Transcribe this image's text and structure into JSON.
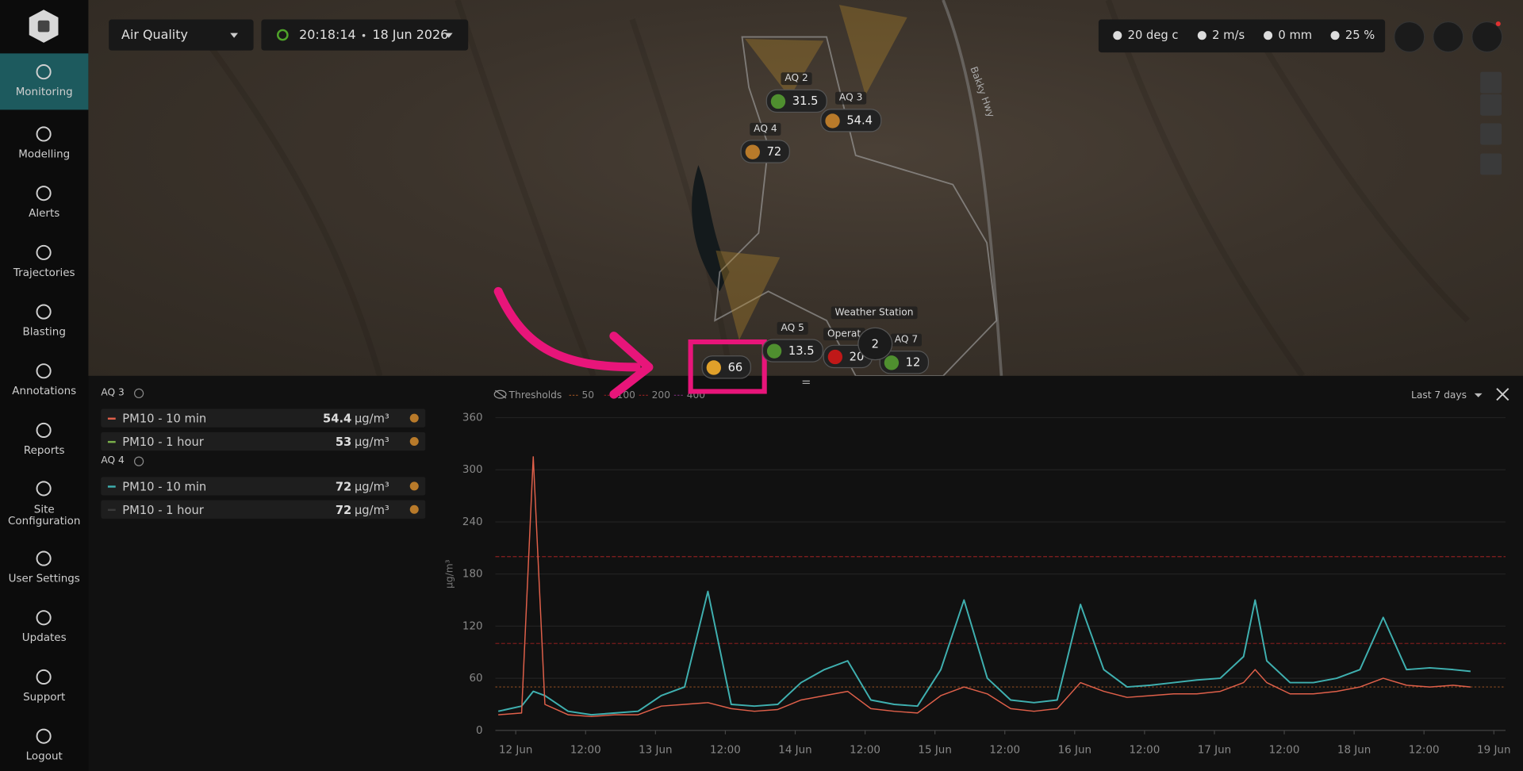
{
  "sidebar": {
    "items": [
      {
        "label": "Monitoring"
      },
      {
        "label": "Modelling"
      },
      {
        "label": "Alerts"
      },
      {
        "label": "Trajectories"
      },
      {
        "label": "Blasting"
      },
      {
        "label": "Annotations"
      },
      {
        "label": "Reports"
      },
      {
        "label": "Site Configuration"
      },
      {
        "label": "User Settings"
      },
      {
        "label": "Updates"
      },
      {
        "label": "Support"
      },
      {
        "label": "Logout"
      }
    ]
  },
  "toolbar": {
    "layer": "Air Quality",
    "time": "20:18:14",
    "date": "18 Jun 2026"
  },
  "weather": {
    "temperature": "20 deg c",
    "wind": "2 m/s",
    "rain": "0 mm",
    "humidity": "25 %"
  },
  "map": {
    "road": "Bakky Hwy",
    "cluster": 2,
    "weather_station": "Weather Station",
    "markers": [
      {
        "name": "AQ 2",
        "value": 31.5,
        "color": "#4f8f2f"
      },
      {
        "name": "AQ 3",
        "value": 54.4,
        "color": "#b87a2a"
      },
      {
        "name": "AQ 4",
        "value": 72,
        "color": "#b87a2a"
      },
      {
        "name": "AQ 5",
        "value": 13.5,
        "color": "#4f8f2f"
      },
      {
        "name": "Operat",
        "value": 20,
        "color": "#c01818"
      },
      {
        "name": "AQ 7",
        "value": 12,
        "color": "#4f8f2f"
      },
      {
        "value": 66,
        "color": "#e0a02a"
      }
    ]
  },
  "panel": {
    "unit": "µg/m³",
    "groups": [
      {
        "name": "AQ 3",
        "rows": [
          {
            "label": "PM10 - 10 min",
            "value": 54.4,
            "color": "#e0604a",
            "status": "#b87a2a"
          },
          {
            "label": "PM10 - 1 hour",
            "value": 53,
            "color": "#7ab04a",
            "status": "#b87a2a"
          }
        ]
      },
      {
        "name": "AQ 4",
        "rows": [
          {
            "label": "PM10 - 10 min",
            "value": 72,
            "color": "#3fb0b0",
            "status": "#b87a2a"
          },
          {
            "label": "PM10 - 1 hour",
            "value": 72,
            "color": "#3a3a3a",
            "status": "#b87a2a"
          }
        ]
      }
    ]
  },
  "chart": {
    "type": "line",
    "thresholds_label": "Thresholds",
    "range": "Last 7 days",
    "y_label": "µg/m³",
    "thresholds": [
      50,
      100,
      200,
      400
    ],
    "threshold_colors": [
      "#8a4a20",
      "#7a1c1c",
      "#8a2020",
      "#6a2a6a"
    ],
    "ylim": [
      0,
      360
    ],
    "yticks": [
      0,
      60,
      120,
      180,
      240,
      300,
      360
    ],
    "xlim": [
      -3.5,
      170
    ],
    "xticks": [
      {
        "value": 0,
        "label": "12 Jun"
      },
      {
        "value": 12,
        "label": "12:00"
      },
      {
        "value": 24,
        "label": "13 Jun"
      },
      {
        "value": 36,
        "label": "12:00"
      },
      {
        "value": 48,
        "label": "14 Jun"
      },
      {
        "value": 60,
        "label": "12:00"
      },
      {
        "value": 72,
        "label": "15 Jun"
      },
      {
        "value": 84,
        "label": "12:00"
      },
      {
        "value": 96,
        "label": "16 Jun"
      },
      {
        "value": 108,
        "label": "12:00"
      },
      {
        "value": 120,
        "label": "17 Jun"
      },
      {
        "value": 132,
        "label": "12:00"
      },
      {
        "value": 144,
        "label": "18 Jun"
      },
      {
        "value": 156,
        "label": "12:00"
      },
      {
        "value": 168,
        "label": "19 Jun"
      }
    ],
    "x": [
      -3,
      1,
      3,
      5,
      9,
      13,
      17,
      21,
      25,
      29,
      33,
      37,
      41,
      45,
      49,
      53,
      57,
      61,
      65,
      69,
      73,
      77,
      81,
      85,
      89,
      93,
      97,
      101,
      105,
      109,
      113,
      117,
      121,
      125,
      127,
      129,
      133,
      137,
      141,
      145,
      149,
      153,
      157,
      161,
      164
    ],
    "series": [
      {
        "color": "#3fb0b0",
        "values": [
          22,
          28,
          45,
          40,
          22,
          18,
          20,
          22,
          40,
          50,
          160,
          30,
          28,
          30,
          55,
          70,
          80,
          35,
          30,
          28,
          70,
          150,
          60,
          35,
          32,
          35,
          145,
          70,
          50,
          52,
          55,
          58,
          60,
          85,
          150,
          80,
          55,
          55,
          60,
          70,
          130,
          70,
          72,
          70,
          68
        ]
      },
      {
        "color": "#e0604a",
        "values": [
          18,
          20,
          315,
          30,
          18,
          16,
          18,
          18,
          28,
          30,
          32,
          25,
          22,
          24,
          35,
          40,
          45,
          25,
          22,
          20,
          40,
          50,
          42,
          25,
          22,
          25,
          55,
          45,
          38,
          40,
          42,
          42,
          45,
          55,
          70,
          55,
          42,
          42,
          45,
          50,
          60,
          52,
          50,
          52,
          50
        ]
      }
    ]
  }
}
